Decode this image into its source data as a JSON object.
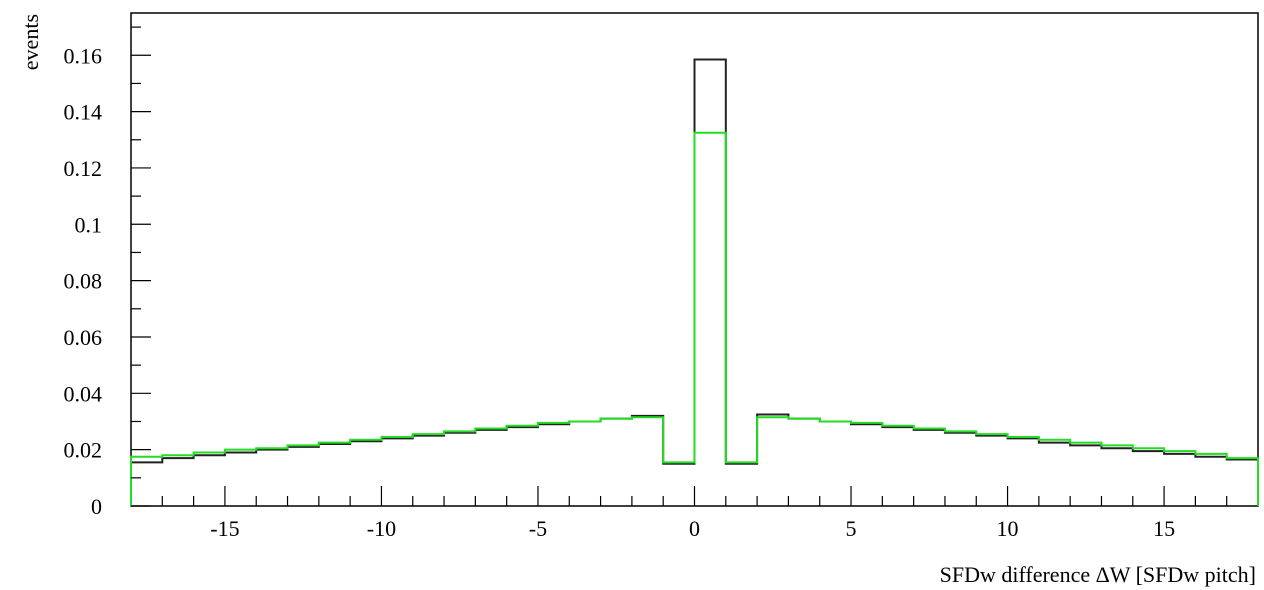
{
  "chart_data": {
    "type": "line",
    "step": true,
    "xlabel": "SFDw difference  ΔW [SFDw pitch]",
    "ylabel": "events",
    "xlim": [
      -18,
      18
    ],
    "ylim": [
      0,
      0.175
    ],
    "grid": false,
    "x_ticks": [
      -15,
      -10,
      -5,
      0,
      5,
      10,
      15
    ],
    "x_tick_labels": [
      "-15",
      "-10",
      "-5",
      "0",
      "5",
      "10",
      "15"
    ],
    "y_ticks": [
      0,
      0.02,
      0.04,
      0.06,
      0.08,
      0.1,
      0.12,
      0.14,
      0.16
    ],
    "y_tick_labels": [
      "0",
      "0.02",
      "0.04",
      "0.06",
      "0.08",
      "0.1",
      "0.12",
      "0.14",
      "0.16"
    ],
    "x": [
      -17.5,
      -16.5,
      -15.5,
      -14.5,
      -13.5,
      -12.5,
      -11.5,
      -10.5,
      -9.5,
      -8.5,
      -7.5,
      -6.5,
      -5.5,
      -4.5,
      -3.5,
      -2.5,
      -1.5,
      -0.5,
      0.5,
      1.5,
      2.5,
      3.5,
      4.5,
      5.5,
      6.5,
      7.5,
      8.5,
      9.5,
      10.5,
      11.5,
      12.5,
      13.5,
      14.5,
      15.5,
      16.5,
      17.5
    ],
    "series": [
      {
        "color": "#222222",
        "values": [
          0.0155,
          0.017,
          0.018,
          0.019,
          0.02,
          0.021,
          0.022,
          0.023,
          0.024,
          0.025,
          0.026,
          0.027,
          0.028,
          0.029,
          0.03,
          0.031,
          0.032,
          0.015,
          0.1585,
          0.015,
          0.0325,
          0.031,
          0.03,
          0.029,
          0.028,
          0.027,
          0.026,
          0.025,
          0.024,
          0.0225,
          0.0215,
          0.0205,
          0.0195,
          0.0185,
          0.0175,
          0.0165
        ]
      },
      {
        "color": "#22dd22",
        "values": [
          0.0175,
          0.018,
          0.019,
          0.02,
          0.0205,
          0.0215,
          0.0225,
          0.0235,
          0.0245,
          0.0255,
          0.0265,
          0.0275,
          0.0285,
          0.0295,
          0.03,
          0.031,
          0.0315,
          0.0155,
          0.1325,
          0.0155,
          0.0315,
          0.031,
          0.03,
          0.0295,
          0.0285,
          0.0275,
          0.0265,
          0.0255,
          0.0245,
          0.0235,
          0.0225,
          0.0215,
          0.0205,
          0.0195,
          0.0185,
          0.017
        ]
      }
    ]
  }
}
